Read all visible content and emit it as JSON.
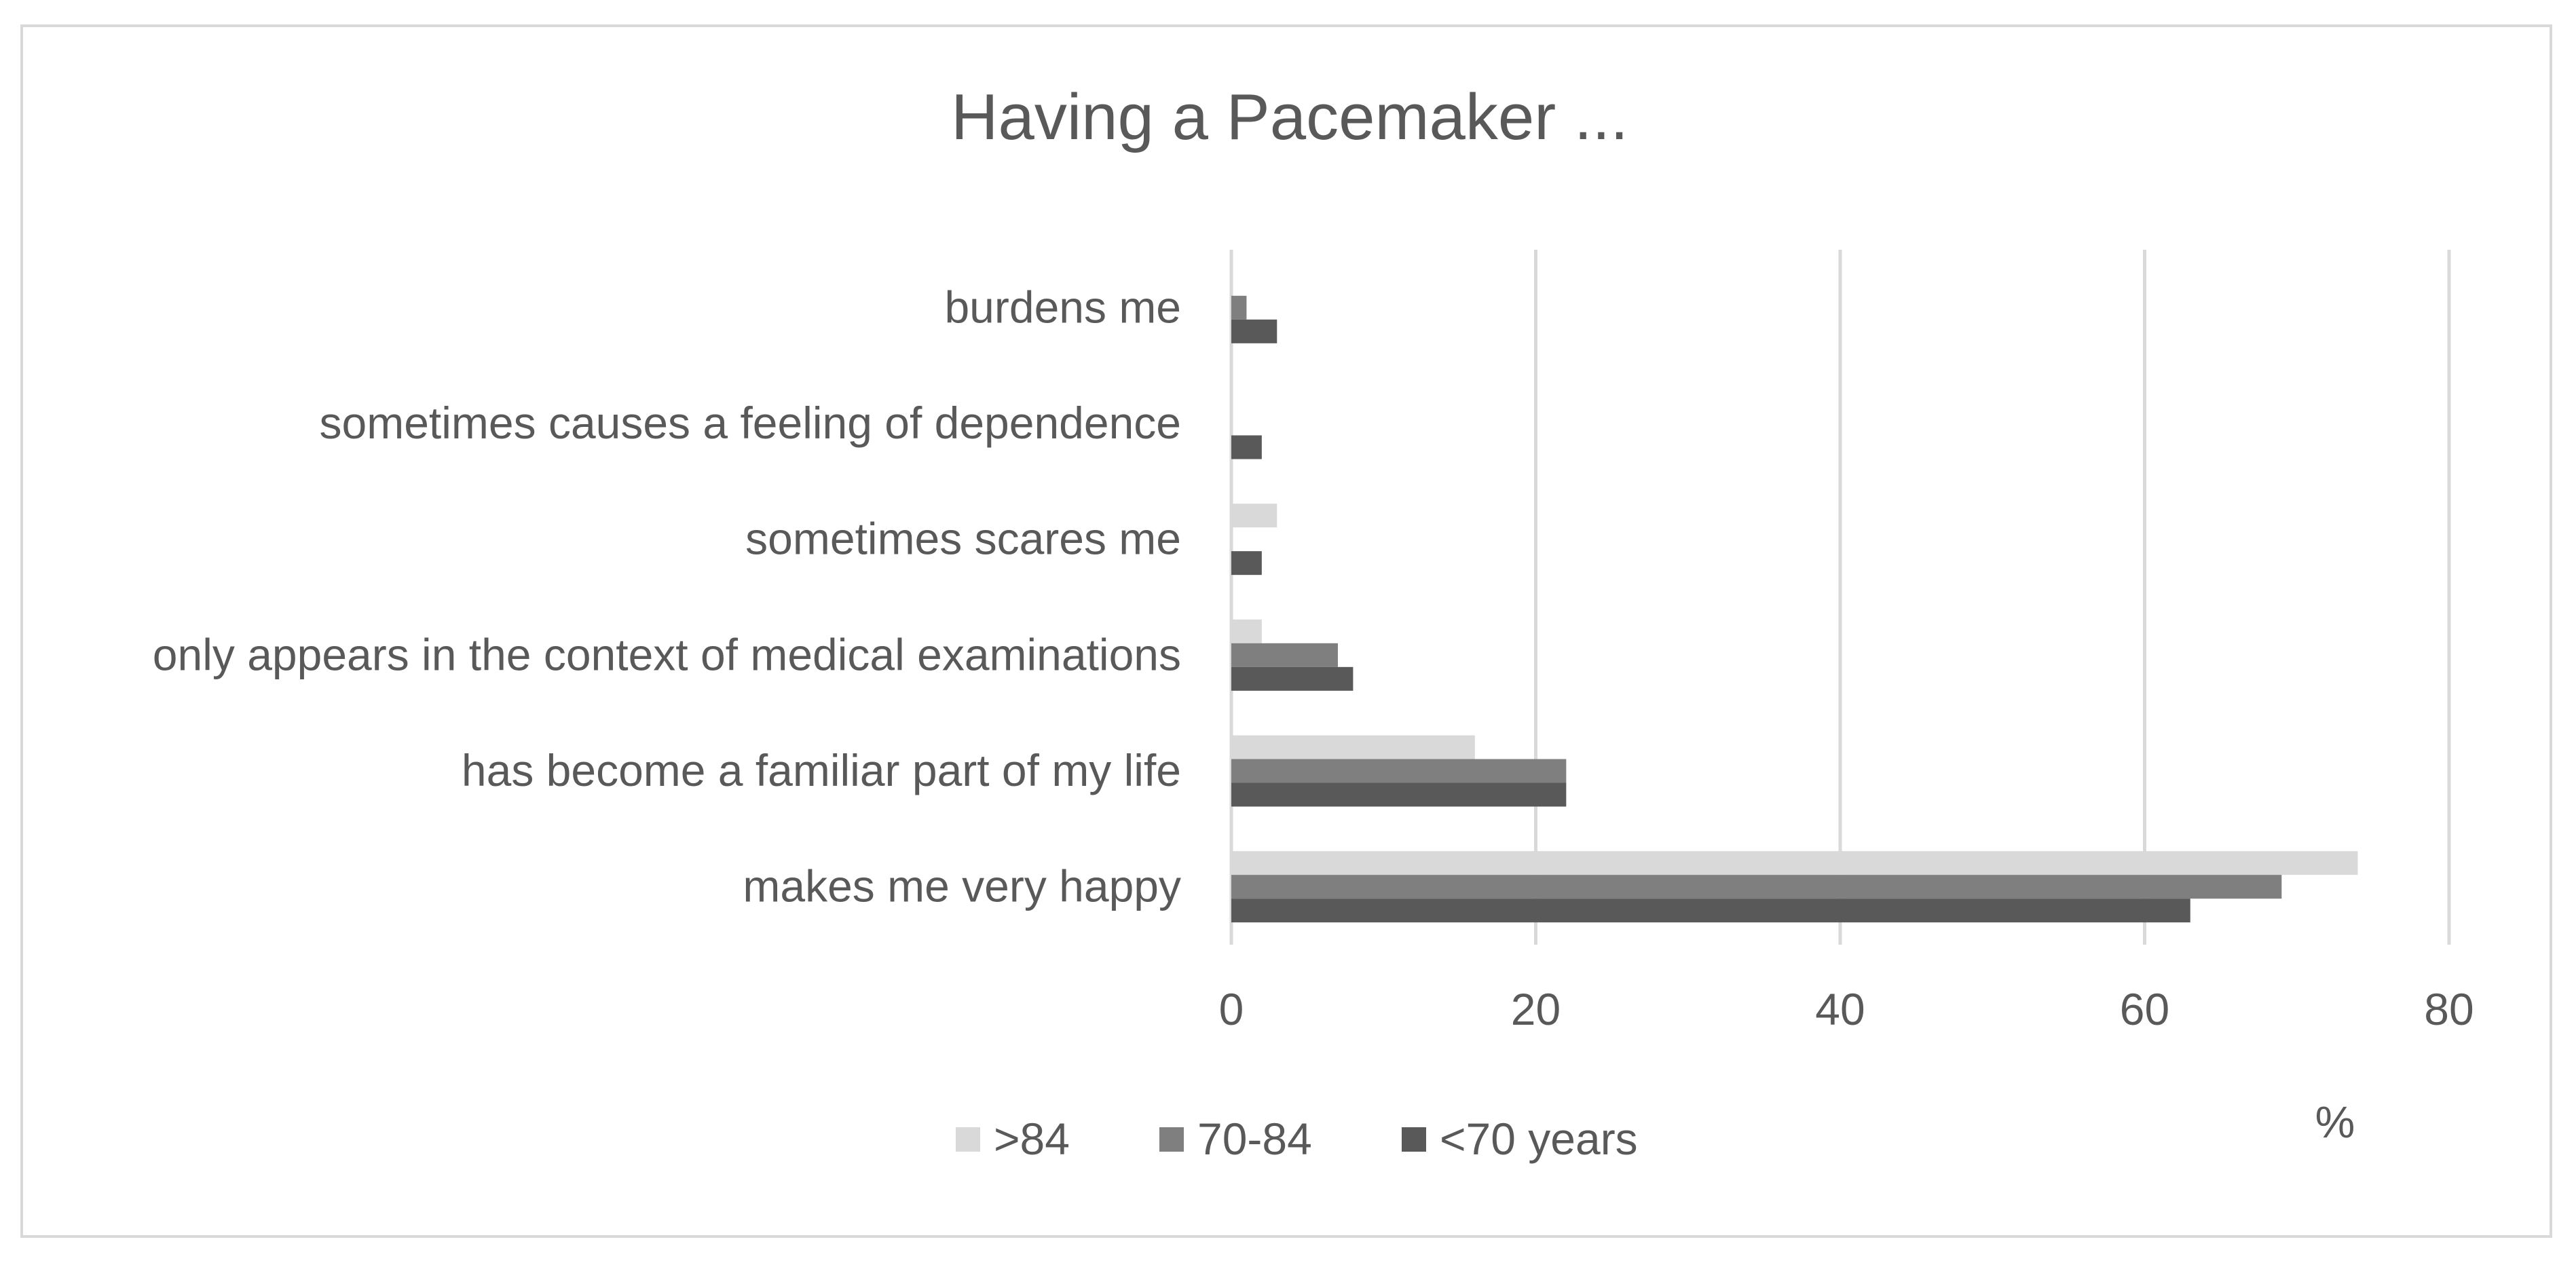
{
  "chart_data": {
    "type": "bar",
    "orientation": "horizontal",
    "title": "Having a Pacemaker ...",
    "xlabel": "%",
    "ylabel": "",
    "xlim": [
      0,
      80
    ],
    "xticks": [
      "0",
      "20",
      "40",
      "60",
      "80"
    ],
    "grid": true,
    "legend_position": "bottom",
    "categories": [
      "burdens me",
      "sometimes causes a feeling of dependence",
      "sometimes scares me",
      "only appears in the context of medical examinations",
      "has become a familiar part of my life",
      "makes me very happy"
    ],
    "series": [
      {
        "name": ">84",
        "color": "#d9d9d9",
        "values": [
          0,
          0,
          3,
          2,
          16,
          74
        ]
      },
      {
        "name": "70-84",
        "color": "#7f7f7f",
        "values": [
          1,
          0,
          0,
          7,
          22,
          69
        ]
      },
      {
        "name": "<70 years",
        "color": "#595959",
        "values": [
          3,
          2,
          2,
          8,
          22,
          63
        ]
      }
    ]
  }
}
